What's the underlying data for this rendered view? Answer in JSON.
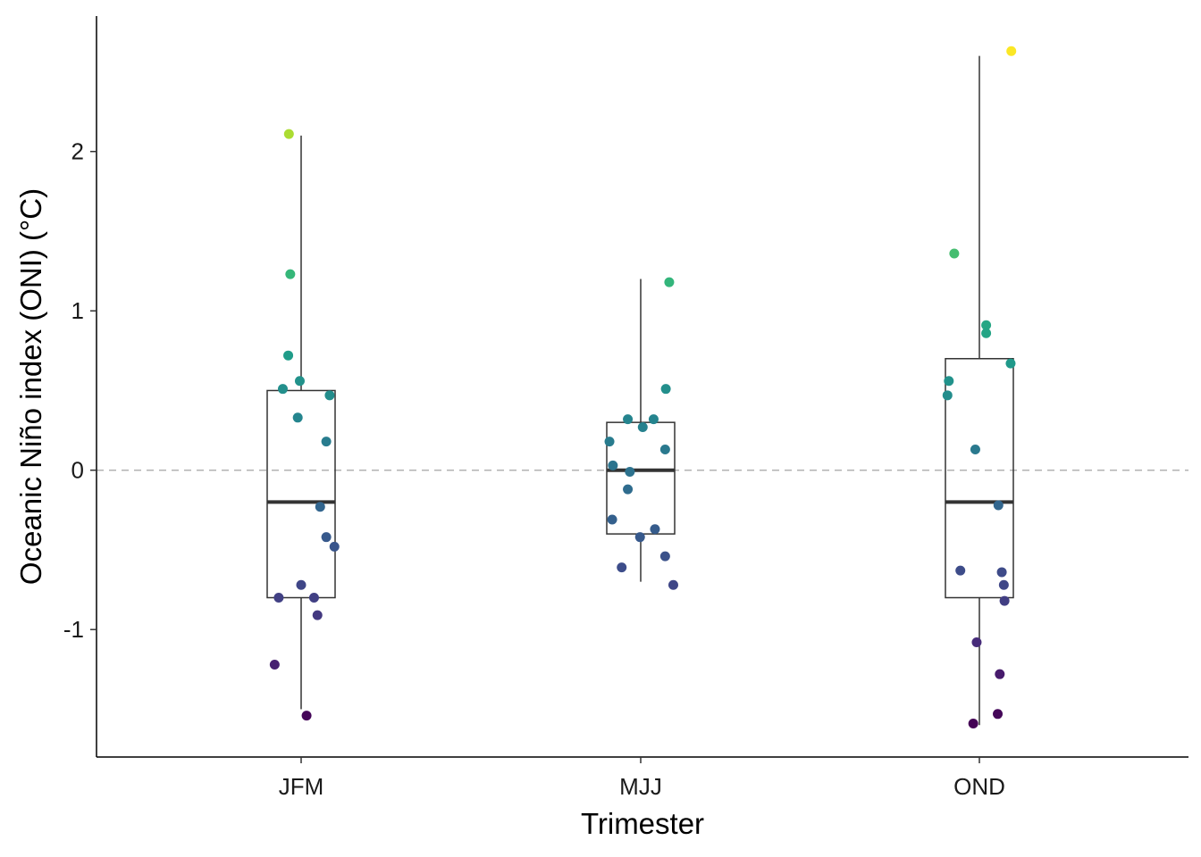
{
  "chart_data": {
    "type": "boxplot",
    "xlabel": "Trimester",
    "ylabel": "Oceanic Niño index (ONI) (°C)",
    "categories": [
      "JFM",
      "MJJ",
      "OND"
    ],
    "ylim": [
      -1.8,
      2.85
    ],
    "yticks": [
      -1,
      0,
      1,
      2
    ],
    "grid": false,
    "reference_line": {
      "y": 0,
      "style": "dashed",
      "color": "#b3b3b3"
    },
    "color_scale": {
      "name": "viridis",
      "range": [
        -1.6,
        2.64
      ]
    },
    "boxes": [
      {
        "category": "JFM",
        "min": -1.5,
        "q1": -0.8,
        "median": -0.2,
        "q3": 0.5,
        "max": 2.1
      },
      {
        "category": "MJJ",
        "min": -0.7,
        "q1": -0.4,
        "median": 0.0,
        "q3": 0.3,
        "max": 1.2
      },
      {
        "category": "OND",
        "min": -1.6,
        "q1": -0.8,
        "median": -0.2,
        "q3": 0.7,
        "max": 2.6
      }
    ],
    "points": [
      {
        "category": "JFM",
        "y": 2.11,
        "jitter": -0.18
      },
      {
        "category": "JFM",
        "y": 1.23,
        "jitter": -0.16
      },
      {
        "category": "JFM",
        "y": 0.72,
        "jitter": -0.19
      },
      {
        "category": "JFM",
        "y": 0.56,
        "jitter": -0.02
      },
      {
        "category": "JFM",
        "y": 0.51,
        "jitter": -0.27
      },
      {
        "category": "JFM",
        "y": 0.47,
        "jitter": 0.42
      },
      {
        "category": "JFM",
        "y": 0.33,
        "jitter": -0.05
      },
      {
        "category": "JFM",
        "y": 0.18,
        "jitter": 0.37
      },
      {
        "category": "JFM",
        "y": -0.23,
        "jitter": 0.28
      },
      {
        "category": "JFM",
        "y": -0.42,
        "jitter": 0.37
      },
      {
        "category": "JFM",
        "y": -0.48,
        "jitter": 0.49
      },
      {
        "category": "JFM",
        "y": -0.72,
        "jitter": 0.0
      },
      {
        "category": "JFM",
        "y": -0.8,
        "jitter": -0.33
      },
      {
        "category": "JFM",
        "y": -0.8,
        "jitter": 0.19
      },
      {
        "category": "JFM",
        "y": -0.91,
        "jitter": 0.24
      },
      {
        "category": "JFM",
        "y": -1.22,
        "jitter": -0.39
      },
      {
        "category": "JFM",
        "y": -1.54,
        "jitter": 0.08
      },
      {
        "category": "MJJ",
        "y": 1.18,
        "jitter": 0.42
      },
      {
        "category": "MJJ",
        "y": 0.51,
        "jitter": 0.37
      },
      {
        "category": "MJJ",
        "y": 0.32,
        "jitter": -0.19
      },
      {
        "category": "MJJ",
        "y": 0.32,
        "jitter": 0.19
      },
      {
        "category": "MJJ",
        "y": 0.27,
        "jitter": 0.03
      },
      {
        "category": "MJJ",
        "y": 0.18,
        "jitter": -0.46
      },
      {
        "category": "MJJ",
        "y": 0.13,
        "jitter": 0.36
      },
      {
        "category": "MJJ",
        "y": 0.03,
        "jitter": -0.41
      },
      {
        "category": "MJJ",
        "y": -0.01,
        "jitter": -0.16
      },
      {
        "category": "MJJ",
        "y": -0.12,
        "jitter": -0.19
      },
      {
        "category": "MJJ",
        "y": -0.31,
        "jitter": -0.42
      },
      {
        "category": "MJJ",
        "y": -0.37,
        "jitter": 0.21
      },
      {
        "category": "MJJ",
        "y": -0.42,
        "jitter": -0.01
      },
      {
        "category": "MJJ",
        "y": -0.54,
        "jitter": 0.36
      },
      {
        "category": "MJJ",
        "y": -0.61,
        "jitter": -0.28
      },
      {
        "category": "MJJ",
        "y": -0.72,
        "jitter": 0.48
      },
      {
        "category": "OND",
        "y": 2.63,
        "jitter": 0.47
      },
      {
        "category": "OND",
        "y": 1.36,
        "jitter": -0.37
      },
      {
        "category": "OND",
        "y": 0.91,
        "jitter": 0.1
      },
      {
        "category": "OND",
        "y": 0.86,
        "jitter": 0.1
      },
      {
        "category": "OND",
        "y": 0.67,
        "jitter": 0.46
      },
      {
        "category": "OND",
        "y": 0.56,
        "jitter": -0.45
      },
      {
        "category": "OND",
        "y": 0.47,
        "jitter": -0.47
      },
      {
        "category": "OND",
        "y": 0.13,
        "jitter": -0.06
      },
      {
        "category": "OND",
        "y": -0.22,
        "jitter": 0.28
      },
      {
        "category": "OND",
        "y": -0.63,
        "jitter": -0.28
      },
      {
        "category": "OND",
        "y": -0.64,
        "jitter": 0.33
      },
      {
        "category": "OND",
        "y": -0.72,
        "jitter": 0.36
      },
      {
        "category": "OND",
        "y": -0.82,
        "jitter": 0.37
      },
      {
        "category": "OND",
        "y": -1.08,
        "jitter": -0.04
      },
      {
        "category": "OND",
        "y": -1.28,
        "jitter": 0.3
      },
      {
        "category": "OND",
        "y": -1.53,
        "jitter": 0.27
      },
      {
        "category": "OND",
        "y": -1.59,
        "jitter": -0.09
      }
    ]
  }
}
